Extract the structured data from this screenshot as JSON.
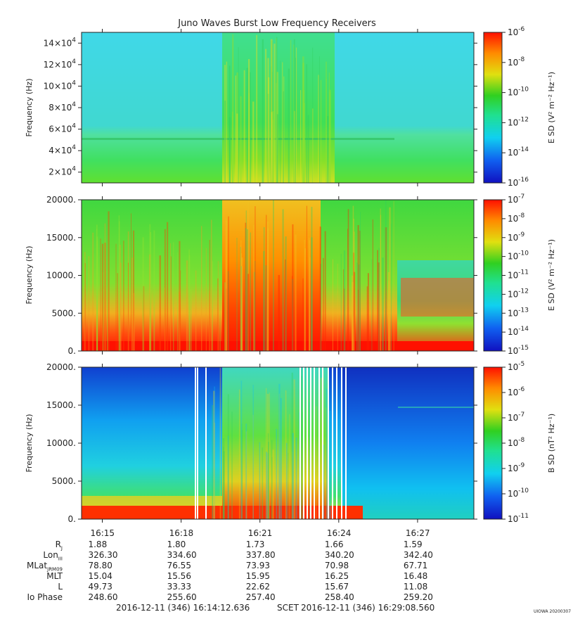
{
  "title": "Juno Waves Burst Low Frequency Receivers",
  "time_ticks": [
    "16:15",
    "16:18",
    "16:21",
    "16:24",
    "16:27"
  ],
  "time_axis": {
    "start_minutes": 14.2106,
    "end_minutes": 29.1427,
    "tick_minutes": [
      15,
      18,
      21,
      24,
      27
    ]
  },
  "footer": {
    "start": "2016-12-11 (346) 16:14:12.636",
    "scet": "SCET",
    "end": "2016-12-11 (346) 16:29:08.560",
    "stamp": "UIOWA 20200307"
  },
  "ephemeris": {
    "labels": [
      {
        "main": "R",
        "sub": "J"
      },
      {
        "main": "Lon",
        "sub": "III"
      },
      {
        "main": "MLat",
        "sub": "JRM09"
      },
      {
        "main": "MLT",
        "sub": ""
      },
      {
        "main": "L",
        "sub": ""
      },
      {
        "main": "Io Phase",
        "sub": ""
      }
    ],
    "rows": [
      [
        "1.88",
        "1.80",
        "1.73",
        "1.66",
        "1.59"
      ],
      [
        "326.30",
        "334.60",
        "337.80",
        "340.20",
        "342.40"
      ],
      [
        "78.80",
        "76.55",
        "73.93",
        "70.98",
        "67.71"
      ],
      [
        "15.04",
        "15.56",
        "15.95",
        "16.25",
        "16.48"
      ],
      [
        "49.73",
        "33.33",
        "22.62",
        "15.67",
        "11.08"
      ],
      [
        "248.60",
        "255.60",
        "257.40",
        "258.40",
        "259.20"
      ]
    ]
  },
  "panels": [
    {
      "ylabel": "Frequency (Hz)",
      "yticks": [
        {
          "mant": "2",
          "exp": "4",
          "value": 20000
        },
        {
          "mant": "4",
          "exp": "4",
          "value": 40000
        },
        {
          "mant": "6",
          "exp": "4",
          "value": 60000
        },
        {
          "mant": "8",
          "exp": "4",
          "value": 80000
        },
        {
          "mant": "10",
          "exp": "4",
          "value": 100000
        },
        {
          "mant": "12",
          "exp": "4",
          "value": 120000
        },
        {
          "mant": "14",
          "exp": "4",
          "value": 140000
        }
      ],
      "ylim": [
        10000,
        150000
      ],
      "cbar_label": "E SD (V² m⁻² Hz⁻¹)",
      "cbar_ticks": [
        "-6",
        "-8",
        "-10",
        "-12",
        "-14",
        "-16"
      ],
      "cbar_range_exp": [
        -16,
        -6
      ]
    },
    {
      "ylabel": "Frequency (Hz)",
      "yticks": [
        {
          "label": "0.",
          "value": 0
        },
        {
          "label": "5000.",
          "value": 5000
        },
        {
          "label": "10000.",
          "value": 10000
        },
        {
          "label": "15000.",
          "value": 15000
        },
        {
          "label": "20000.",
          "value": 20000
        }
      ],
      "ylim": [
        0,
        20000
      ],
      "cbar_label": "E SD (V² m⁻² Hz⁻¹)",
      "cbar_ticks": [
        "-7",
        "-8",
        "-9",
        "-10",
        "-11",
        "-12",
        "-13",
        "-14",
        "-15"
      ],
      "cbar_range_exp": [
        -15,
        -7
      ]
    },
    {
      "ylabel": "Frequency (Hz)",
      "yticks": [
        {
          "label": "0.",
          "value": 0
        },
        {
          "label": "5000.",
          "value": 5000
        },
        {
          "label": "10000.",
          "value": 10000
        },
        {
          "label": "15000.",
          "value": 15000
        },
        {
          "label": "20000.",
          "value": 20000
        }
      ],
      "ylim": [
        0,
        20000
      ],
      "cbar_label": "B SD (nT² Hz⁻¹)",
      "cbar_ticks": [
        "-5",
        "-6",
        "-7",
        "-8",
        "-9",
        "-10",
        "-11"
      ],
      "cbar_range_exp": [
        -11,
        -5
      ]
    }
  ],
  "chart_data": [
    {
      "type": "heatmap",
      "title": "Juno Waves Burst Low Frequency Receivers",
      "xlabel": "SCET",
      "ylabel": "Frequency (Hz)",
      "x_range": [
        "16:14:12.636",
        "16:29:08.560"
      ],
      "ylim": [
        10000,
        150000
      ],
      "colorbar": "E SD (V² m⁻² Hz⁻¹)",
      "color_range_exp": [
        -16,
        -6
      ]
    },
    {
      "type": "heatmap",
      "xlabel": "SCET",
      "ylabel": "Frequency (Hz)",
      "x_range": [
        "16:14:12.636",
        "16:29:08.560"
      ],
      "ylim": [
        0,
        20000
      ],
      "colorbar": "E SD (V² m⁻² Hz⁻¹)",
      "color_range_exp": [
        -15,
        -7
      ]
    },
    {
      "type": "heatmap",
      "xlabel": "SCET",
      "ylabel": "Frequency (Hz)",
      "x_range": [
        "16:14:12.636",
        "16:29:08.560"
      ],
      "ylim": [
        0,
        20000
      ],
      "colorbar": "B SD (nT² Hz⁻¹)",
      "color_range_exp": [
        -11,
        -5
      ]
    }
  ]
}
